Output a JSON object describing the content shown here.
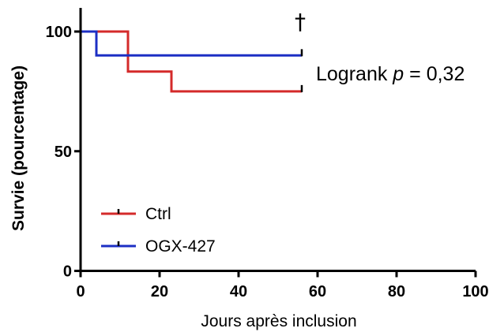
{
  "chart_data": {
    "type": "line",
    "subtype": "kaplan-meier",
    "xlabel": "Jours après inclusion",
    "ylabel": "Survie (pourcentage)",
    "xlim": [
      0,
      100
    ],
    "ylim": [
      0,
      100
    ],
    "x_ticks": [
      0,
      20,
      40,
      60,
      80,
      100
    ],
    "y_ticks": [
      0,
      50,
      100
    ],
    "x_tick_labels": [
      "0",
      "20",
      "40",
      "60",
      "80",
      "100"
    ],
    "y_tick_labels": [
      "0",
      "50",
      "100"
    ],
    "grid": false,
    "legend_position": "bottom-left",
    "series": [
      {
        "name": "Ctrl",
        "color": "#d42a2a",
        "steps": [
          [
            0,
            100
          ],
          [
            12,
            100
          ],
          [
            12,
            83.3
          ],
          [
            23,
            83.3
          ],
          [
            23,
            75
          ],
          [
            56,
            75
          ]
        ],
        "censored": [
          [
            56,
            75
          ]
        ]
      },
      {
        "name": "OGX-427",
        "color": "#1c2fc4",
        "steps": [
          [
            0,
            100
          ],
          [
            4,
            100
          ],
          [
            4,
            90
          ],
          [
            56,
            90
          ]
        ],
        "censored": [
          [
            56,
            90
          ]
        ]
      }
    ],
    "annotations": {
      "logrank_prefix": "Logrank ",
      "logrank_p": "p",
      "logrank_suffix": " = 0,32",
      "dagger": "†"
    }
  }
}
